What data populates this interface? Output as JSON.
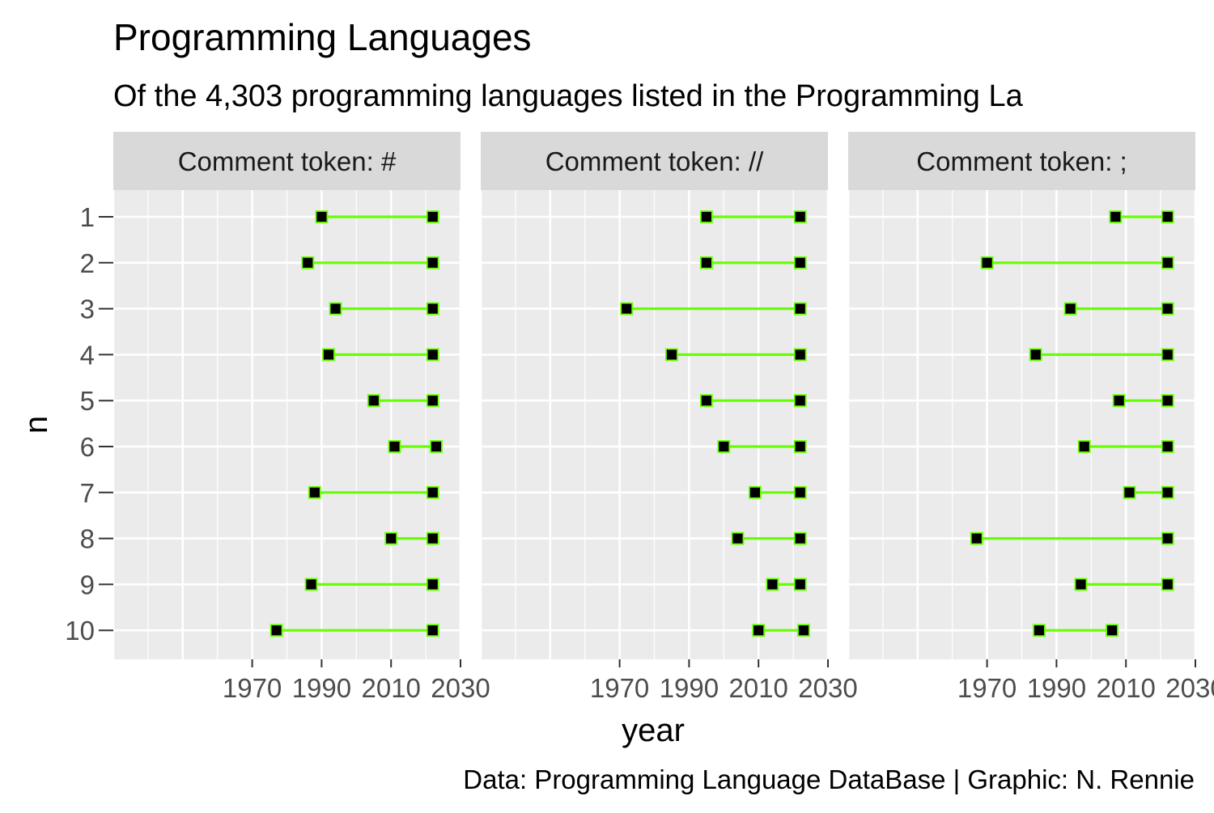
{
  "chart_data": {
    "type": "dumbbell",
    "title": "Programming Languages",
    "subtitle": "Of the 4,303 programming languages listed in the Programming La",
    "xlabel": "year",
    "ylabel": "n",
    "caption": "Data: Programming Language DataBase | Graphic: N. Rennie",
    "xlim": [
      1930,
      2030
    ],
    "xticks": [
      1970,
      1990,
      2010,
      2030
    ],
    "categories": [
      "1",
      "2",
      "3",
      "4",
      "5",
      "6",
      "7",
      "8",
      "9",
      "10"
    ],
    "colors": {
      "segment": "#66ff00",
      "point_fill": "#000000",
      "panel_bg": "#ebebeb",
      "strip_bg": "#d9d9d9",
      "grid": "#ffffff"
    },
    "panels": [
      {
        "strip": "Comment token: #",
        "rows": [
          {
            "n": "1",
            "start": 1990,
            "end": 2022
          },
          {
            "n": "2",
            "start": 1986,
            "end": 2022
          },
          {
            "n": "3",
            "start": 1994,
            "end": 2022
          },
          {
            "n": "4",
            "start": 1992,
            "end": 2022
          },
          {
            "n": "5",
            "start": 2005,
            "end": 2022
          },
          {
            "n": "6",
            "start": 2011,
            "end": 2023
          },
          {
            "n": "7",
            "start": 1988,
            "end": 2022
          },
          {
            "n": "8",
            "start": 2010,
            "end": 2022
          },
          {
            "n": "9",
            "start": 1987,
            "end": 2022
          },
          {
            "n": "10",
            "start": 1977,
            "end": 2022
          }
        ]
      },
      {
        "strip": "Comment token: //",
        "rows": [
          {
            "n": "1",
            "start": 1995,
            "end": 2022
          },
          {
            "n": "2",
            "start": 1995,
            "end": 2022
          },
          {
            "n": "3",
            "start": 1972,
            "end": 2022
          },
          {
            "n": "4",
            "start": 1985,
            "end": 2022
          },
          {
            "n": "5",
            "start": 1995,
            "end": 2022
          },
          {
            "n": "6",
            "start": 2000,
            "end": 2022
          },
          {
            "n": "7",
            "start": 2009,
            "end": 2022
          },
          {
            "n": "8",
            "start": 2004,
            "end": 2022
          },
          {
            "n": "9",
            "start": 2014,
            "end": 2022
          },
          {
            "n": "10",
            "start": 2010,
            "end": 2023
          }
        ]
      },
      {
        "strip": "Comment token: ;",
        "rows": [
          {
            "n": "1",
            "start": 2007,
            "end": 2022
          },
          {
            "n": "2",
            "start": 1970,
            "end": 2022
          },
          {
            "n": "3",
            "start": 1994,
            "end": 2022
          },
          {
            "n": "4",
            "start": 1984,
            "end": 2022
          },
          {
            "n": "5",
            "start": 2008,
            "end": 2022
          },
          {
            "n": "6",
            "start": 1998,
            "end": 2022
          },
          {
            "n": "7",
            "start": 2011,
            "end": 2022
          },
          {
            "n": "8",
            "start": 1967,
            "end": 2022
          },
          {
            "n": "9",
            "start": 1997,
            "end": 2022
          },
          {
            "n": "10",
            "start": 1985,
            "end": 2006
          }
        ]
      }
    ]
  }
}
